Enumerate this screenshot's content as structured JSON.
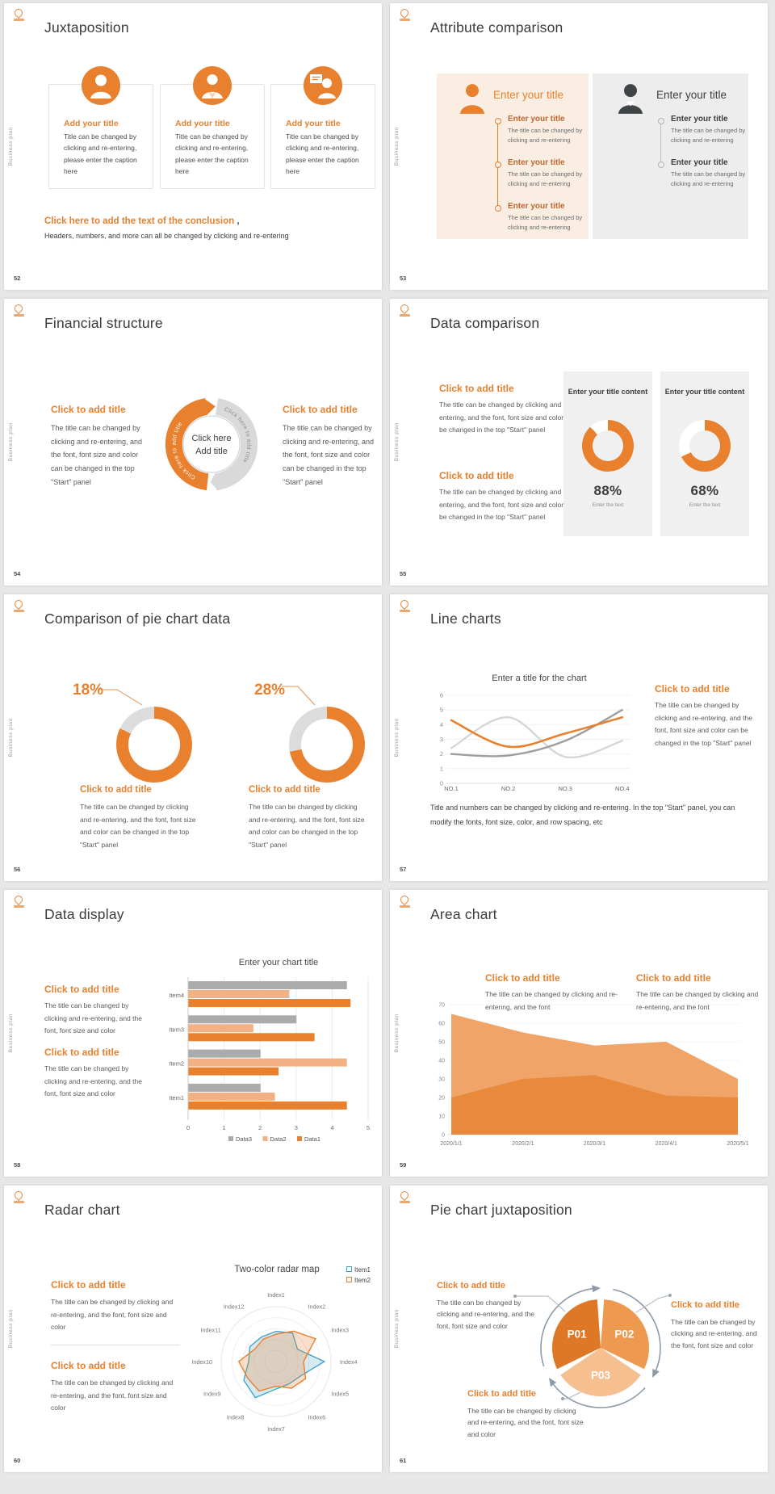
{
  "page": {
    "background": "#e7e7e7",
    "slide_bg": "#ffffff",
    "vertical_label": "Business plan"
  },
  "colors": {
    "accent": "#E8802E",
    "title_text": "#3b3b3b",
    "body_text": "#5a5a5a",
    "panel_orange": "#FAEEE2",
    "panel_gray": "#EDEDED",
    "card_gray": "#F0F0F0",
    "bar_gray": "#ABABAB",
    "bar_light_orange": "#F3B183",
    "arrow_blue_gray": "#8C9BAA"
  },
  "common": {
    "click_title": "Click to add title",
    "body_start_panel": "The title can be changed by clicking and re-entering, and the font, font size and color can be changed in the top \"Start\" panel",
    "body_font_color": "The title can be changed by clicking and re-entering, and the font, font size and color",
    "body_font": "The title can be changed by clicking and re-entering, and the font",
    "body_short": "The title can be changed by clicking and re-entering"
  },
  "slides": {
    "s52": {
      "number": "52",
      "title": "Juxtaposition",
      "cards": [
        {
          "title": "Add your title",
          "body": "Title can be changed by clicking and re-entering, please enter the caption here"
        },
        {
          "title": "Add your title",
          "body": "Title can be changed by clicking and re-entering, please enter the caption here"
        },
        {
          "title": "Add your title",
          "body": "Title can be changed by clicking and re-entering, please enter the caption here"
        }
      ],
      "conclusion_title": "Click here to add the text of the conclusion",
      "conclusion_comma": ",",
      "conclusion_body": "Headers, numbers, and more can all be changed by clicking and re-entering"
    },
    "s53": {
      "number": "53",
      "title": "Attribute comparison",
      "left": {
        "header": "Enter your title",
        "items": [
          {
            "title": "Enter your title",
            "body": "The title can be changed by clicking and re-entering"
          },
          {
            "title": "Enter your title",
            "body": "The title can be changed by clicking and re-entering"
          },
          {
            "title": "Enter your title",
            "body": "The title can be changed by clicking and re-entering"
          }
        ]
      },
      "right": {
        "header": "Enter your title",
        "items": [
          {
            "title": "Enter your title",
            "body": "The title can be changed by clicking and re-entering"
          },
          {
            "title": "Enter your title",
            "body": "The title can be changed by clicking and re-entering"
          }
        ]
      }
    },
    "s54": {
      "number": "54",
      "title": "Financial structure",
      "arrow_label_left": "Click here to add title",
      "arrow_label_right": "Click here to add title",
      "center_line1": "Click here",
      "center_line2": "Add title"
    },
    "s55": {
      "number": "55",
      "title": "Data comparison",
      "cards": [
        {
          "header": "Enter your title content",
          "caption": "Enter the text"
        },
        {
          "header": "Enter your title content",
          "caption": "Enter the text"
        }
      ]
    },
    "s56": {
      "number": "56",
      "title": "Comparison of pie chart data"
    },
    "s57": {
      "number": "57",
      "title": "Line charts",
      "note": "Title and numbers can be changed by clicking and re-entering. In the top \"Start\" panel, you can modify the fonts, font size, color, and row spacing, etc"
    },
    "s58": {
      "number": "58",
      "title": "Data display"
    },
    "s59": {
      "number": "59",
      "title": "Area chart"
    },
    "s60": {
      "number": "60",
      "title": "Radar chart"
    },
    "s61": {
      "number": "61",
      "title": "Pie chart juxtaposition"
    }
  },
  "chart_data": {
    "donuts_55": {
      "type": "pie",
      "ring_color": "#E8802E",
      "gap_color": "#ffffff",
      "hole_color": "#F0F0F0",
      "mode": "direct",
      "items": [
        {
          "percent": 88,
          "label": "88%"
        },
        {
          "percent": 68,
          "label": "68%"
        }
      ]
    },
    "donuts_56": {
      "type": "pie",
      "ring_color": "#E8802E",
      "gap_color": "#DCDCDC",
      "hole_color": "#ffffff",
      "mode": "remainder",
      "items": [
        {
          "percent": 18,
          "label": "18%"
        },
        {
          "percent": 28,
          "label": "28%"
        }
      ]
    },
    "line_57": {
      "type": "line",
      "title": "Enter a title for the chart",
      "x": [
        "NO.1",
        "NO.2",
        "NO.3",
        "NO.4"
      ],
      "ylim": [
        0,
        6
      ],
      "yticks": [
        0,
        1,
        2,
        3,
        4,
        5,
        6
      ],
      "grid": true,
      "series": [
        {
          "name": "orange",
          "color": "#E8802E",
          "width": 2.6,
          "values": [
            4.3,
            2.5,
            3.4,
            4.5
          ]
        },
        {
          "name": "dark-gray",
          "color": "#9E9E9E",
          "width": 2.4,
          "values": [
            2.0,
            1.9,
            2.9,
            5.0
          ]
        },
        {
          "name": "light-gray",
          "color": "#D6D6D6",
          "width": 2.4,
          "values": [
            2.4,
            4.5,
            1.8,
            2.9
          ]
        }
      ]
    },
    "bars_58": {
      "type": "bar",
      "title": "Enter your chart title",
      "categories": [
        "Item1",
        "Item2",
        "Item3",
        "Item4"
      ],
      "xlim": [
        0,
        5
      ],
      "xticks": [
        0,
        1,
        2,
        3,
        4,
        5
      ],
      "row_order": [
        "Data3",
        "Data2",
        "Data1"
      ],
      "series": [
        {
          "name": "Data1",
          "color": "#E8802E",
          "values": [
            4.4,
            2.5,
            3.5,
            4.5
          ]
        },
        {
          "name": "Data2",
          "color": "#F3B183",
          "values": [
            2.4,
            4.4,
            1.8,
            2.8
          ]
        },
        {
          "name": "Data3",
          "color": "#ABABAB",
          "values": [
            2.0,
            2.0,
            3.0,
            4.4
          ]
        }
      ]
    },
    "area_59": {
      "type": "area",
      "x": [
        "2020/1/1",
        "2020/2/1",
        "2020/3/1",
        "2020/4/1",
        "2020/5/1"
      ],
      "ylim": [
        0,
        70
      ],
      "yticks": [
        0,
        10,
        20,
        30,
        40,
        50,
        60,
        70
      ],
      "series": [
        {
          "name": "back",
          "color": "#F0A467",
          "values": [
            65,
            55,
            48,
            50,
            30
          ]
        },
        {
          "name": "front",
          "color": "#E8893C",
          "values": [
            20,
            30,
            32,
            21,
            20
          ]
        }
      ]
    },
    "radar_60": {
      "type": "radar",
      "title": "Two-color radar map",
      "rings": 5,
      "rmax": 100,
      "axes": [
        "Index1",
        "Index2",
        "Index3",
        "Index4",
        "Index5",
        "Index6",
        "Index7",
        "Index8",
        "Index9",
        "Index10",
        "Index11",
        "Index12"
      ],
      "series": [
        {
          "name": "Item1",
          "color": "#3FA8C8",
          "fill": "rgba(99,173,199,0.25)",
          "values": [
            55,
            60,
            45,
            88,
            52,
            47,
            50,
            76,
            68,
            50,
            55,
            52
          ]
        },
        {
          "name": "Item2",
          "color": "#E8802E",
          "fill": "rgba(232,128,46,0.25)",
          "values": [
            50,
            64,
            83,
            50,
            62,
            56,
            45,
            62,
            60,
            68,
            45,
            47
          ]
        }
      ]
    },
    "pie_61": {
      "type": "pie",
      "labels": [
        "P01",
        "P02",
        "P03"
      ],
      "values": [
        33.3,
        33.3,
        33.3
      ],
      "colors": [
        "#DE7826",
        "#EE9950",
        "#F6BF8F"
      ],
      "starts": [
        244,
        4,
        124
      ],
      "ends": [
        356,
        116,
        236
      ],
      "label_angles": [
        300,
        60,
        180
      ],
      "arrow_color": "#8C9BAA",
      "arrow_arcs": [
        [
          252,
          352
        ],
        [
          12,
          112
        ],
        [
          132,
          232
        ]
      ]
    }
  }
}
